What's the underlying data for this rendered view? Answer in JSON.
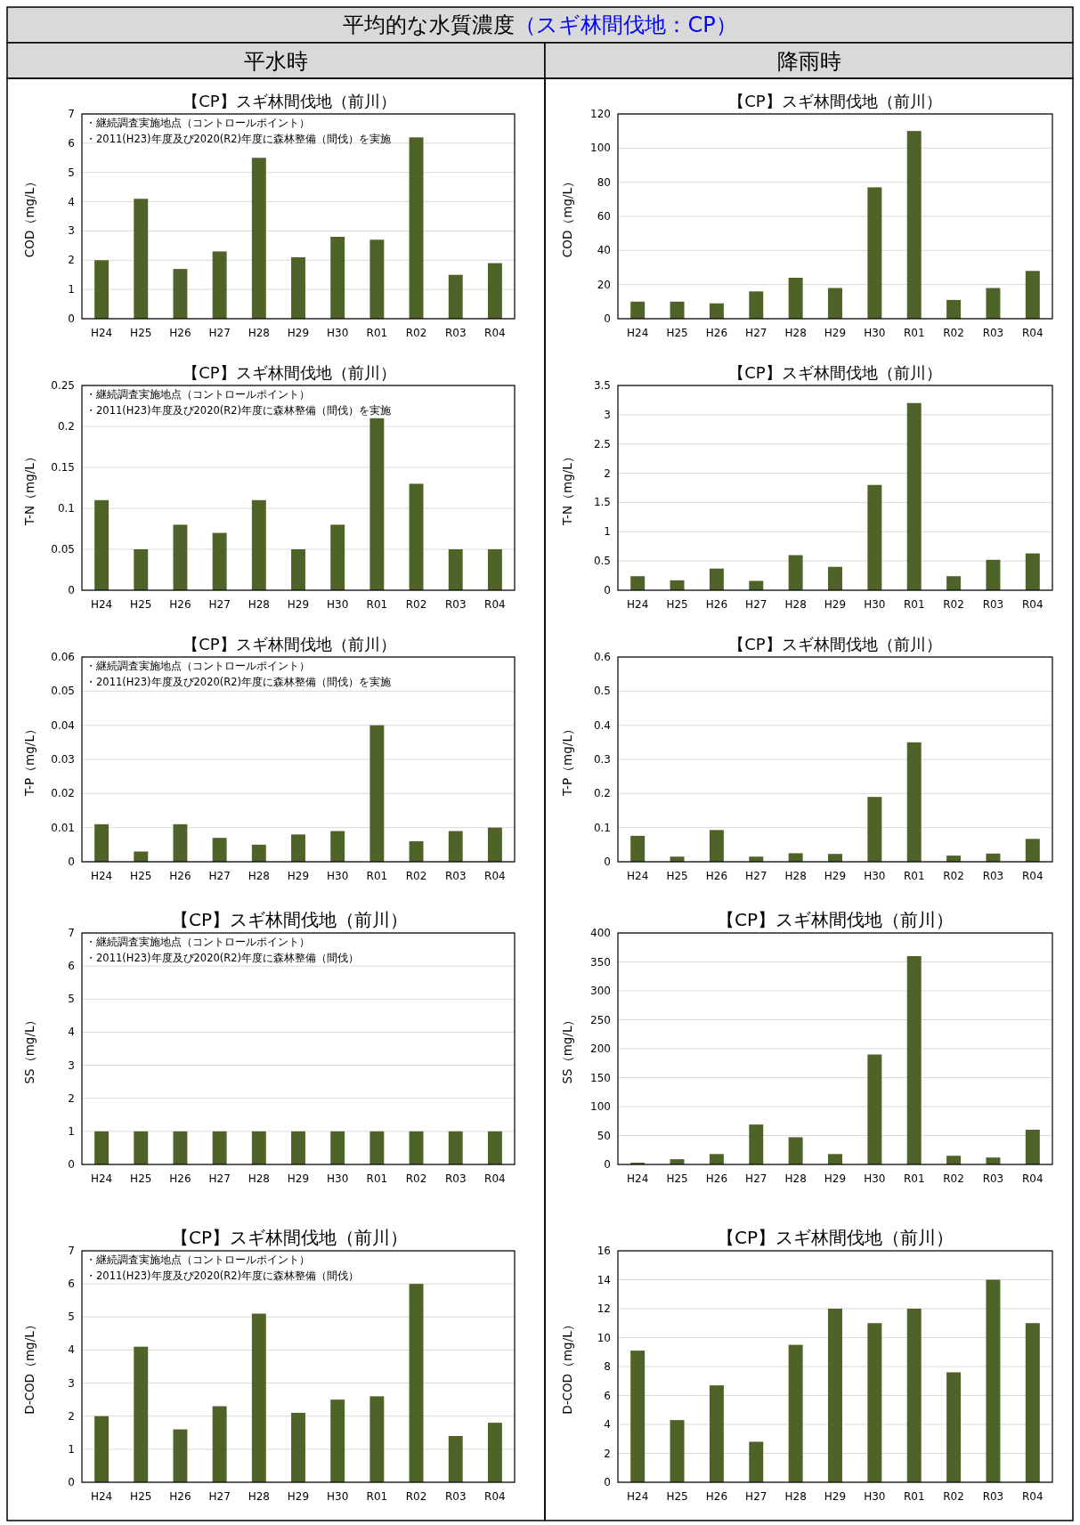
{
  "chart_data": [
    {
      "type": "other",
      "title": "平均的な水質濃度",
      "subtitle": "（スギ林間伐地：CP）",
      "annotations": [
        "平水時",
        "降雨時"
      ]
    },
    {
      "type": "bar",
      "title": "【CP】スギ林間伐地（前川）",
      "ylabel": "COD（mg/L）",
      "categories": [
        "H24",
        "H25",
        "H26",
        "H27",
        "H28",
        "H29",
        "H30",
        "R01",
        "R02",
        "R03",
        "R04"
      ],
      "values": [
        2,
        4.1,
        1.7,
        2.3,
        5.5,
        2.1,
        2.8,
        2.7,
        6.2,
        1.5,
        1.9
      ],
      "color": "#4f6228",
      "ylim": [
        0,
        7
      ],
      "yticks": [
        0,
        1,
        2,
        3,
        4,
        5,
        6,
        7
      ],
      "grid": "y",
      "annotations": [
        "・継続調査実施地点（コントロールポイント）",
        "・2011(H23)年度及び2020(R2)年度に森林整備（間伐）を実施"
      ]
    },
    {
      "type": "bar",
      "title": "【CP】スギ林間伐地（前川）",
      "ylabel": "COD（mg/L）",
      "categories": [
        "H24",
        "H25",
        "H26",
        "H27",
        "H28",
        "H29",
        "H30",
        "R01",
        "R02",
        "R03",
        "R04"
      ],
      "values": [
        10,
        10,
        9,
        16,
        24,
        18,
        77,
        110,
        11,
        18,
        28
      ],
      "color": "#4f6228",
      "ylim": [
        0,
        120
      ],
      "yticks": [
        0,
        20,
        40,
        60,
        80,
        100,
        120
      ],
      "grid": "y"
    },
    {
      "type": "bar",
      "title": "【CP】スギ林間伐地（前川）",
      "ylabel": "T-N（mg/L）",
      "categories": [
        "H24",
        "H25",
        "H26",
        "H27",
        "H28",
        "H29",
        "H30",
        "R01",
        "R02",
        "R03",
        "R04"
      ],
      "values": [
        0.11,
        0.05,
        0.08,
        0.07,
        0.11,
        0.05,
        0.08,
        0.21,
        0.13,
        0.05,
        0.05
      ],
      "color": "#4f6228",
      "ylim": [
        0,
        0.25
      ],
      "yticks": [
        0,
        0.05,
        0.1,
        0.15,
        0.2,
        0.25
      ],
      "grid": "y",
      "annotations": [
        "・継続調査実施地点（コントロールポイント）",
        "・2011(H23)年度及び2020(R2)年度に森林整備（間伐）を実施"
      ]
    },
    {
      "type": "bar",
      "title": "【CP】スギ林間伐地（前川）",
      "ylabel": "T-N（mg/L）",
      "categories": [
        "H24",
        "H25",
        "H26",
        "H27",
        "H28",
        "H29",
        "H30",
        "R01",
        "R02",
        "R03",
        "R04"
      ],
      "values": [
        0.24,
        0.17,
        0.37,
        0.16,
        0.6,
        0.4,
        1.8,
        3.2,
        0.24,
        0.52,
        0.63
      ],
      "color": "#4f6228",
      "ylim": [
        0,
        3.5
      ],
      "yticks": [
        0,
        0.5,
        1,
        1.5,
        2,
        2.5,
        3,
        3.5
      ],
      "grid": "y"
    },
    {
      "type": "bar",
      "title": "【CP】スギ林間伐地（前川）",
      "ylabel": "T-P（mg/L）",
      "categories": [
        "H24",
        "H25",
        "H26",
        "H27",
        "H28",
        "H29",
        "H30",
        "R01",
        "R02",
        "R03",
        "R04"
      ],
      "values": [
        0.011,
        0.003,
        0.011,
        0.007,
        0.005,
        0.008,
        0.009,
        0.04,
        0.006,
        0.009,
        0.01
      ],
      "color": "#4f6228",
      "ylim": [
        0,
        0.06
      ],
      "yticks": [
        0,
        0.01,
        0.02,
        0.03,
        0.04,
        0.05,
        0.06
      ],
      "grid": "y",
      "annotations": [
        "・継続調査実施地点（コントロールポイント）",
        "・2011(H23)年度及び2020(R2)年度に森林整備（間伐）を実施"
      ]
    },
    {
      "type": "bar",
      "title": "【CP】スギ林間伐地（前川）",
      "ylabel": "T-P（mg/L）",
      "categories": [
        "H24",
        "H25",
        "H26",
        "H27",
        "H28",
        "H29",
        "H30",
        "R01",
        "R02",
        "R03",
        "R04"
      ],
      "values": [
        0.076,
        0.015,
        0.093,
        0.015,
        0.025,
        0.023,
        0.19,
        0.35,
        0.018,
        0.024,
        0.067
      ],
      "color": "#4f6228",
      "ylim": [
        0,
        0.6
      ],
      "yticks": [
        0,
        0.1,
        0.2,
        0.3,
        0.4,
        0.5,
        0.6
      ],
      "grid": "y"
    },
    {
      "type": "bar",
      "title": "【CP】スギ林間伐地（前川）",
      "ylabel": "SS（mg/L）",
      "categories": [
        "H24",
        "H25",
        "H26",
        "H27",
        "H28",
        "H29",
        "H30",
        "R01",
        "R02",
        "R03",
        "R04"
      ],
      "values": [
        1,
        1,
        1,
        1,
        1,
        1,
        1,
        1,
        1,
        1,
        1
      ],
      "color": "#4f6228",
      "ylim": [
        0,
        7
      ],
      "yticks": [
        0,
        1,
        2,
        3,
        4,
        5,
        6,
        7
      ],
      "grid": "y",
      "annotations": [
        "・継続調査実施地点（コントロールポイント）",
        "・2011(H23)年度及び2020(R2)年度に森林整備（間伐）"
      ]
    },
    {
      "type": "bar",
      "title": "【CP】スギ林間伐地（前川）",
      "ylabel": "SS（mg/L）",
      "categories": [
        "H24",
        "H25",
        "H26",
        "H27",
        "H28",
        "H29",
        "H30",
        "R01",
        "R02",
        "R03",
        "R04"
      ],
      "values": [
        3,
        9,
        18,
        69,
        47,
        18,
        190,
        360,
        15,
        12,
        60
      ],
      "color": "#4f6228",
      "ylim": [
        0,
        400
      ],
      "yticks": [
        0,
        50,
        100,
        150,
        200,
        250,
        300,
        350,
        400
      ],
      "grid": "y"
    },
    {
      "type": "bar",
      "title": "【CP】スギ林間伐地（前川）",
      "ylabel": "D-COD（mg/L）",
      "categories": [
        "H24",
        "H25",
        "H26",
        "H27",
        "H28",
        "H29",
        "H30",
        "R01",
        "R02",
        "R03",
        "R04"
      ],
      "values": [
        2,
        4.1,
        1.6,
        2.3,
        5.1,
        2.1,
        2.5,
        2.6,
        6,
        1.4,
        1.8
      ],
      "color": "#4f6228",
      "ylim": [
        0,
        7
      ],
      "yticks": [
        0,
        1,
        2,
        3,
        4,
        5,
        6,
        7
      ],
      "grid": "y",
      "annotations": [
        "・継続調査実施地点（コントロールポイント）",
        "・2011(H23)年度及び2020(R2)年度に森林整備（間伐）"
      ]
    },
    {
      "type": "bar",
      "title": "【CP】スギ林間伐地（前川）",
      "ylabel": "D-COD（mg/L）",
      "categories": [
        "H24",
        "H25",
        "H26",
        "H27",
        "H28",
        "H29",
        "H30",
        "R01",
        "R02",
        "R03",
        "R04"
      ],
      "values": [
        9.1,
        4.3,
        6.7,
        2.8,
        9.5,
        12,
        11,
        12,
        7.6,
        14,
        11
      ],
      "color": "#4f6228",
      "ylim": [
        0,
        16
      ],
      "yticks": [
        0,
        2,
        4,
        6,
        8,
        10,
        12,
        14,
        16
      ],
      "grid": "y"
    }
  ]
}
